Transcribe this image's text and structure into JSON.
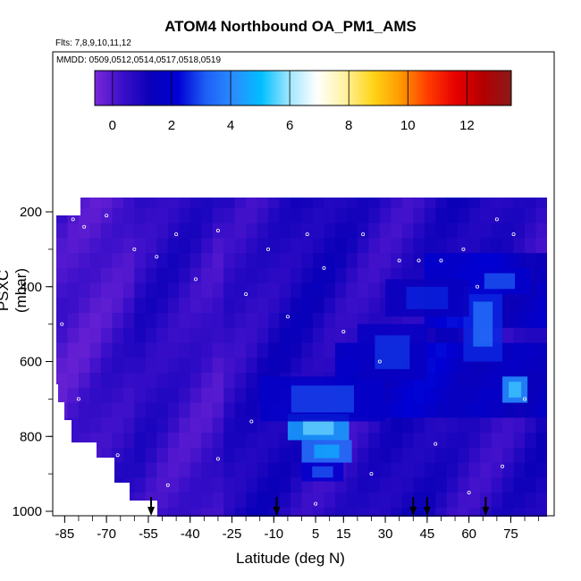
{
  "chart_data": {
    "type": "heatmap",
    "title": "ATOM4 Northbound OA_PM1_AMS",
    "flights_note": "Flts: 7,8,9,10,11,12",
    "dates_note": "MMDD: 0509,0512,0514,0517,0518,0519",
    "xlabel": "Latitude (deg N)",
    "ylabel": "PSXC (mbar)",
    "xlim": [
      -88,
      88
    ],
    "ylim": [
      1010,
      130
    ],
    "x_ticks": [
      -85,
      -70,
      -55,
      -40,
      -25,
      -10,
      5,
      15,
      30,
      45,
      60,
      75
    ],
    "y_ticks": [
      200,
      400,
      600,
      800,
      1000
    ],
    "colorbar": {
      "range": [
        -0.6,
        13.5
      ],
      "ticks": [
        0,
        2,
        4,
        6,
        8,
        10,
        12
      ],
      "colors": [
        "#7a28d8",
        "#3b0fc9",
        "#0a00b8",
        "#0000d4",
        "#1e5ff5",
        "#2a8cff",
        "#00bfff",
        "#9fe6ff",
        "#ffffff",
        "#fff2a0",
        "#ffd51a",
        "#ff9a00",
        "#ff3b00",
        "#e60000",
        "#b30000",
        "#8b1a1a"
      ]
    },
    "curtain_background": [
      {
        "x": [
          -88,
          -75
        ],
        "y": [
          130,
          1010
        ],
        "value": 0.2
      },
      {
        "x": [
          -75,
          -60
        ],
        "y": [
          130,
          1010
        ],
        "value": 0.4
      }
    ],
    "hotspots": [
      {
        "x": [
          -5,
          17
        ],
        "y": [
          740,
          810
        ],
        "value": 4.5
      },
      {
        "x": [
          0,
          18
        ],
        "y": [
          810,
          870
        ],
        "value": 3.6
      },
      {
        "x": [
          0,
          15
        ],
        "y": [
          870,
          920
        ],
        "value": 2.0
      },
      {
        "x": [
          72,
          81
        ],
        "y": [
          640,
          710
        ],
        "value": 4.2
      },
      {
        "x": [
          58,
          72
        ],
        "y": [
          400,
          600
        ],
        "value": 2.6
      },
      {
        "x": [
          60,
          82
        ],
        "y": [
          350,
          420
        ],
        "value": 2.0
      },
      {
        "x": [
          -15,
          30
        ],
        "y": [
          640,
          760
        ],
        "value": 1.8
      },
      {
        "x": [
          20,
          45
        ],
        "y": [
          500,
          650
        ],
        "value": 1.6
      },
      {
        "x": [
          30,
          60
        ],
        "y": [
          380,
          480
        ],
        "value": 1.4
      }
    ],
    "profile_markers_lat": [
      -54,
      -9,
      40,
      45,
      66
    ],
    "sample_points": [
      {
        "lat": -82,
        "p": 220
      },
      {
        "lat": -78,
        "p": 240
      },
      {
        "lat": -70,
        "p": 210
      },
      {
        "lat": -60,
        "p": 300
      },
      {
        "lat": -52,
        "p": 320
      },
      {
        "lat": -45,
        "p": 260
      },
      {
        "lat": -38,
        "p": 380
      },
      {
        "lat": -30,
        "p": 250
      },
      {
        "lat": -20,
        "p": 420
      },
      {
        "lat": -12,
        "p": 300
      },
      {
        "lat": -5,
        "p": 480
      },
      {
        "lat": 2,
        "p": 260
      },
      {
        "lat": 8,
        "p": 350
      },
      {
        "lat": 15,
        "p": 520
      },
      {
        "lat": 22,
        "p": 260
      },
      {
        "lat": 28,
        "p": 600
      },
      {
        "lat": 35,
        "p": 330
      },
      {
        "lat": 42,
        "p": 330
      },
      {
        "lat": 50,
        "p": 330
      },
      {
        "lat": 58,
        "p": 300
      },
      {
        "lat": 63,
        "p": 400
      },
      {
        "lat": 70,
        "p": 220
      },
      {
        "lat": 76,
        "p": 260
      },
      {
        "lat": 80,
        "p": 700
      },
      {
        "lat": -86,
        "p": 500
      },
      {
        "lat": -80,
        "p": 700
      },
      {
        "lat": -66,
        "p": 850
      },
      {
        "lat": -48,
        "p": 930
      },
      {
        "lat": -30,
        "p": 860
      },
      {
        "lat": -18,
        "p": 760
      },
      {
        "lat": 5,
        "p": 980
      },
      {
        "lat": 25,
        "p": 900
      },
      {
        "lat": 48,
        "p": 820
      },
      {
        "lat": 60,
        "p": 950
      },
      {
        "lat": 72,
        "p": 880
      }
    ]
  }
}
